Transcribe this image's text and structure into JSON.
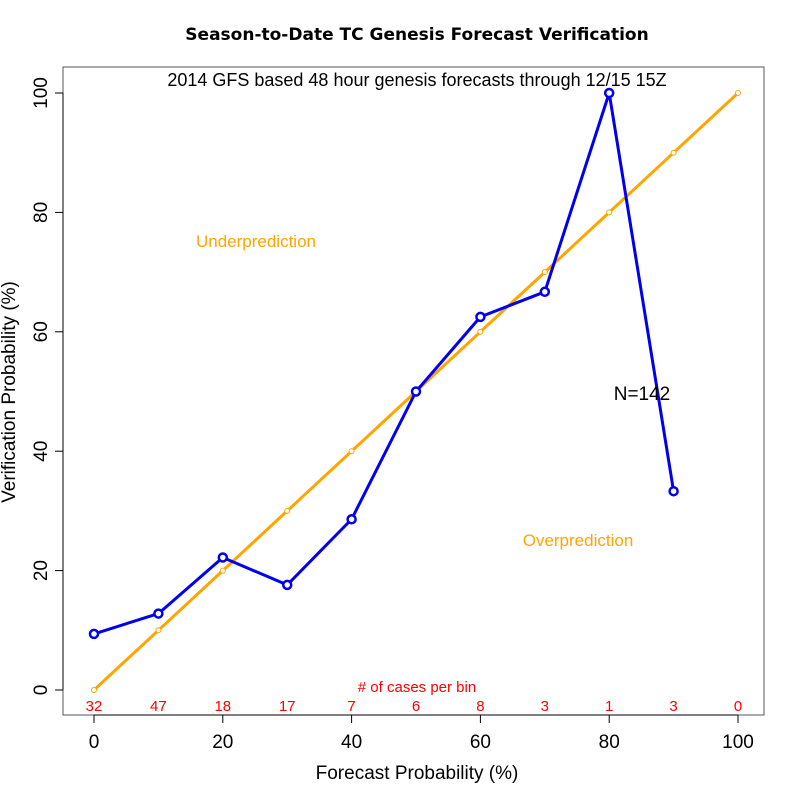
{
  "chart_data": {
    "type": "line",
    "title": "Season-to-Date TC Genesis Forecast Verification",
    "subtitle": "2014 GFS based 48 hour genesis forecasts through 12/15 15Z",
    "xlabel": "Forecast Probability (%)",
    "ylabel": "Verification Probability (%)",
    "xlim": [
      0,
      100
    ],
    "ylim": [
      0,
      100
    ],
    "x_ticks": [
      "0",
      "20",
      "40",
      "60",
      "80",
      "100"
    ],
    "y_ticks": [
      "0",
      "20",
      "40",
      "60",
      "80",
      "100"
    ],
    "grid": false,
    "series": [
      {
        "role": "reliability",
        "color": "#0000ee",
        "x": [
          0,
          10,
          20,
          30,
          40,
          50,
          60,
          70,
          80,
          90
        ],
        "y": [
          9.4,
          12.8,
          22.2,
          17.6,
          28.6,
          50.0,
          62.5,
          66.7,
          100.0,
          33.3
        ]
      },
      {
        "role": "perfect-reliability",
        "color": "#ffa500",
        "x": [
          0,
          10,
          20,
          30,
          40,
          50,
          60,
          70,
          80,
          90,
          100
        ],
        "y": [
          0,
          10,
          20,
          30,
          40,
          50,
          60,
          70,
          80,
          90,
          100
        ]
      }
    ],
    "annotations": {
      "underprediction": "Underprediction",
      "overprediction": "Overprediction",
      "region_color": "#ffa500",
      "n_label": "N=142",
      "counts_title": "# of cases per bin",
      "counts_color": "#ff0000"
    },
    "bin_counts": {
      "x": [
        0,
        10,
        20,
        30,
        40,
        50,
        60,
        70,
        80,
        90,
        100
      ],
      "labels": [
        "32",
        "47",
        "18",
        "17",
        "7",
        "6",
        "8",
        "3",
        "1",
        "3",
        "0"
      ]
    }
  }
}
